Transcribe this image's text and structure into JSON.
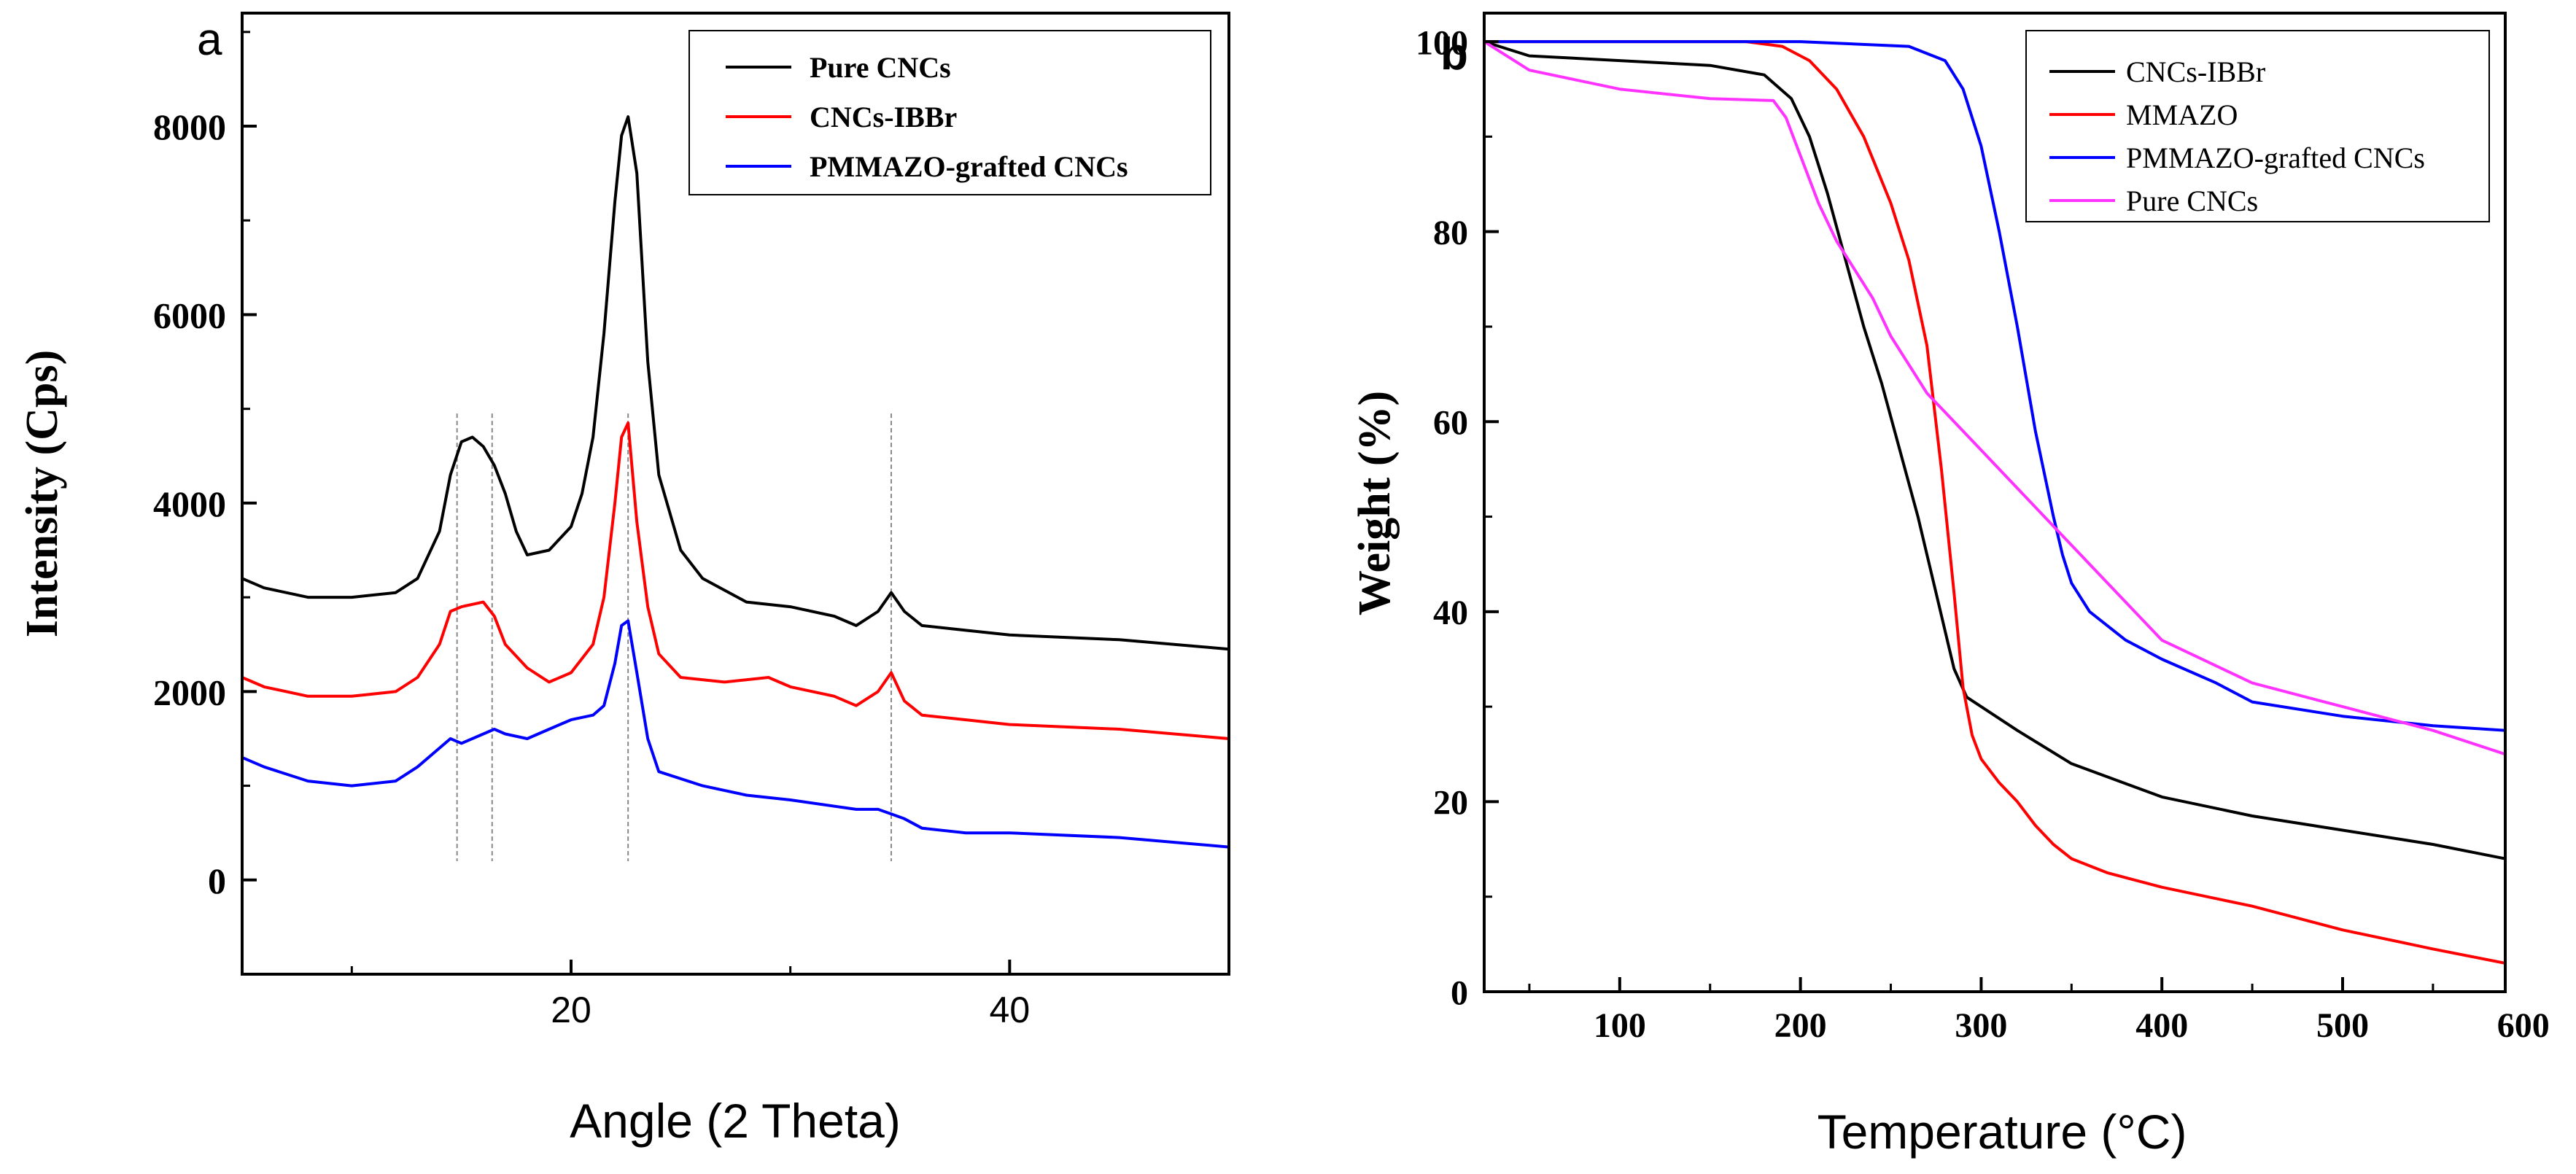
{
  "chart_data": [
    {
      "panel_label": "a",
      "type": "line",
      "title": "",
      "xlabel": "Angle (2 Theta)",
      "ylabel": "Intensity (Cps)",
      "xlim": [
        5,
        50
      ],
      "ylim": [
        -1000,
        9200
      ],
      "xticks": [
        "20",
        "40"
      ],
      "xtick_values": [
        20,
        40
      ],
      "yticks": [
        "0",
        "2000",
        "4000",
        "6000",
        "8000"
      ],
      "ytick_values": [
        0,
        2000,
        4000,
        6000,
        8000
      ],
      "reference_lines": [
        14.8,
        16.4,
        22.6,
        34.6
      ],
      "legend_position": "top-right",
      "series": [
        {
          "name": "Pure CNCs",
          "color": "#000000",
          "x": [
            5,
            6,
            8,
            10,
            12,
            13,
            14,
            14.5,
            15,
            15.5,
            16,
            16.5,
            17,
            17.5,
            18,
            19,
            20,
            20.5,
            21,
            21.5,
            22,
            22.3,
            22.6,
            23,
            23.5,
            24,
            25,
            26,
            28,
            30,
            32,
            33,
            34,
            34.6,
            35.2,
            36,
            38,
            40,
            45,
            50
          ],
          "y": [
            3200,
            3100,
            3000,
            3000,
            3050,
            3200,
            3700,
            4300,
            4650,
            4700,
            4600,
            4400,
            4100,
            3700,
            3450,
            3500,
            3750,
            4100,
            4700,
            5800,
            7200,
            7900,
            8100,
            7500,
            5500,
            4300,
            3500,
            3200,
            2950,
            2900,
            2800,
            2700,
            2850,
            3050,
            2850,
            2700,
            2650,
            2600,
            2550,
            2450
          ]
        },
        {
          "name": "CNCs-IBBr",
          "color": "#ff0000",
          "x": [
            5,
            6,
            8,
            10,
            12,
            13,
            14,
            14.5,
            15,
            16,
            16.5,
            17,
            18,
            19,
            20,
            21,
            21.5,
            22,
            22.3,
            22.6,
            23,
            23.5,
            24,
            25,
            27,
            29,
            30,
            32,
            33,
            34,
            34.6,
            35.2,
            36,
            38,
            40,
            45,
            50
          ],
          "y": [
            2150,
            2050,
            1950,
            1950,
            2000,
            2150,
            2500,
            2850,
            2900,
            2950,
            2800,
            2500,
            2250,
            2100,
            2200,
            2500,
            3000,
            4000,
            4700,
            4850,
            3800,
            2900,
            2400,
            2150,
            2100,
            2150,
            2050,
            1950,
            1850,
            2000,
            2200,
            1900,
            1750,
            1700,
            1650,
            1600,
            1500
          ]
        },
        {
          "name": "PMMAZO-grafted CNCs",
          "color": "#0000ff",
          "x": [
            5,
            6,
            8,
            10,
            12,
            13,
            14,
            14.5,
            15,
            16,
            16.5,
            17,
            18,
            19,
            20,
            21,
            21.5,
            22,
            22.3,
            22.6,
            23,
            23.5,
            24,
            26,
            28,
            30,
            33,
            34,
            34.6,
            35.2,
            36,
            38,
            40,
            45,
            50
          ],
          "y": [
            1300,
            1200,
            1050,
            1000,
            1050,
            1200,
            1400,
            1500,
            1450,
            1550,
            1600,
            1550,
            1500,
            1600,
            1700,
            1750,
            1850,
            2300,
            2700,
            2750,
            2200,
            1500,
            1150,
            1000,
            900,
            850,
            750,
            750,
            700,
            650,
            550,
            500,
            500,
            450,
            350
          ]
        }
      ]
    },
    {
      "panel_label": "b",
      "type": "line",
      "title": "",
      "xlabel": "Temperature (°C)",
      "ylabel": "Weight (%)",
      "xlim": [
        25,
        590
      ],
      "ylim": [
        0,
        103
      ],
      "xticks": [
        "100",
        "200",
        "300",
        "400",
        "500",
        "600"
      ],
      "xtick_values": [
        100,
        200,
        300,
        400,
        500,
        600
      ],
      "yticks": [
        "0",
        "20",
        "40",
        "60",
        "80",
        "100"
      ],
      "ytick_values": [
        0,
        20,
        40,
        60,
        80,
        100
      ],
      "legend_position": "top-right",
      "series": [
        {
          "name": "CNCs-IBBr",
          "color": "#000000",
          "x": [
            25,
            50,
            100,
            150,
            180,
            195,
            205,
            215,
            225,
            235,
            245,
            255,
            265,
            275,
            285,
            292,
            300,
            320,
            350,
            400,
            450,
            500,
            550,
            590
          ],
          "y": [
            100,
            98.5,
            98,
            97.5,
            96.5,
            94,
            90,
            84,
            77,
            70,
            64,
            57,
            50,
            42,
            34,
            31,
            30,
            27.5,
            24,
            20.5,
            18.5,
            17,
            15.5,
            14
          ]
        },
        {
          "name": "MMAZO",
          "color": "#ff0000",
          "x": [
            25,
            100,
            170,
            190,
            205,
            220,
            235,
            250,
            260,
            270,
            278,
            285,
            290,
            295,
            300,
            310,
            320,
            330,
            340,
            350,
            370,
            400,
            450,
            500,
            550,
            590
          ],
          "y": [
            100,
            100,
            100,
            99.5,
            98,
            95,
            90,
            83,
            77,
            68,
            55,
            42,
            32,
            27,
            24.5,
            22,
            20,
            17.5,
            15.5,
            14,
            12.5,
            11,
            9,
            6.5,
            4.5,
            3
          ]
        },
        {
          "name": "PMMAZO-grafted CNCs",
          "color": "#0000ff",
          "x": [
            25,
            100,
            200,
            260,
            280,
            290,
            300,
            310,
            320,
            330,
            340,
            345,
            350,
            360,
            380,
            400,
            430,
            450,
            500,
            550,
            590
          ],
          "y": [
            100,
            100,
            100,
            99.5,
            98,
            95,
            89,
            80,
            70,
            59,
            50,
            46,
            43,
            40,
            37,
            35,
            32.5,
            30.5,
            29,
            28,
            27.5
          ]
        },
        {
          "name": "Pure   CNCs",
          "color": "#ff33ff",
          "x": [
            25,
            50,
            100,
            150,
            185,
            192,
            200,
            210,
            220,
            230,
            240,
            250,
            260,
            270,
            280,
            300,
            320,
            340,
            360,
            380,
            400,
            450,
            500,
            550,
            590
          ],
          "y": [
            100,
            97,
            95,
            94,
            93.8,
            92,
            88,
            83,
            79,
            76,
            73,
            69,
            66,
            63,
            61,
            57,
            53,
            49,
            45,
            41,
            37,
            32.5,
            30,
            27.5,
            25
          ]
        }
      ]
    }
  ]
}
